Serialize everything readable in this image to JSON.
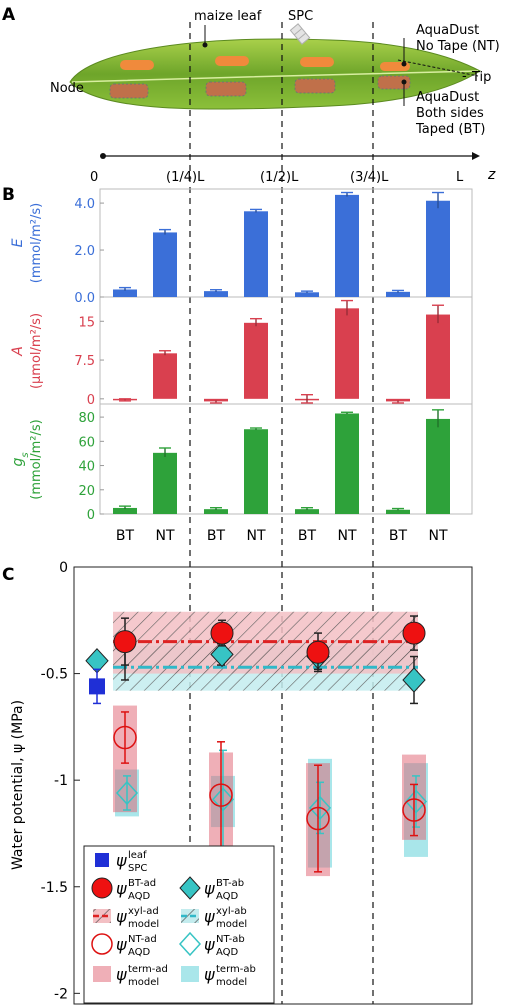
{
  "panels": {
    "A": "A",
    "B": "B",
    "C": "C"
  },
  "panel_a": {
    "leaf_label": "maize leaf",
    "spc_label": "SPC",
    "node_label": "Node",
    "tip_label": "Tip",
    "nt_label_1": "AquaDust",
    "nt_label_2": "No Tape (NT)",
    "bt_label_1": "AquaDust",
    "bt_label_2": "Both sides",
    "bt_label_3": "Taped (BT)",
    "axis_ticks": [
      "0",
      "(1/4)L",
      "(1/2)L",
      "(3/4)L",
      "L"
    ],
    "axis_var": "z",
    "colors": {
      "leaf": "#8fbf3a",
      "nt_patch": "#f08a3c",
      "bt_patch": "#c0704a"
    }
  },
  "chart_data": [
    {
      "type": "bar",
      "panel": "B",
      "groups": [
        "(0-1/4)L",
        "(1/4-1/2)L",
        "(1/2-3/4)L",
        "(3/4-1)L"
      ],
      "categories": [
        "BT",
        "NT"
      ],
      "rows": [
        {
          "ylabel_var": "E",
          "ylabel_unit": "(mmol/m²/s)",
          "color": "#3b6fd8",
          "ylim": [
            0,
            4.6
          ],
          "ticks": [
            "0.0",
            "2.0",
            "4.0"
          ],
          "tick_values": [
            0,
            2,
            4
          ],
          "values": [
            [
              0.32,
              2.75
            ],
            [
              0.25,
              3.65
            ],
            [
              0.2,
              4.35
            ],
            [
              0.22,
              4.1
            ]
          ],
          "errors": [
            [
              0.08,
              0.12
            ],
            [
              0.06,
              0.08
            ],
            [
              0.05,
              0.1
            ],
            [
              0.06,
              0.35
            ]
          ]
        },
        {
          "ylabel_var": "A",
          "ylabel_unit": "(μmol/m²/s)",
          "color": "#d9404f",
          "ylim": [
            -1,
            19.5
          ],
          "ticks": [
            "0",
            "7.5",
            "15"
          ],
          "tick_values": [
            0,
            7.5,
            15
          ],
          "values": [
            [
              -0.2,
              8.8
            ],
            [
              -0.5,
              14.7
            ],
            [
              0,
              17.5
            ],
            [
              -0.5,
              16.3
            ]
          ],
          "errors": [
            [
              0.2,
              0.5
            ],
            [
              0.3,
              0.8
            ],
            [
              0.8,
              1.5
            ],
            [
              0.3,
              1.8
            ]
          ]
        },
        {
          "ylabel_var": "gs",
          "ylabel_unit": "(mmol/m²/s)",
          "color": "#2ea23a",
          "ylim": [
            0,
            90
          ],
          "ticks": [
            "0",
            "20",
            "40",
            "60",
            "80"
          ],
          "tick_values": [
            0,
            20,
            40,
            60,
            80
          ],
          "values": [
            [
              5,
              50.5
            ],
            [
              4,
              70
            ],
            [
              4,
              83
            ],
            [
              3.5,
              78.5
            ]
          ],
          "errors": [
            [
              1.5,
              4
            ],
            [
              1.2,
              1
            ],
            [
              1.2,
              1
            ],
            [
              1.0,
              7.5
            ]
          ]
        }
      ],
      "x_labels": [
        "BT",
        "NT",
        "BT",
        "NT",
        "BT",
        "NT",
        "BT",
        "NT"
      ]
    },
    {
      "type": "scatter",
      "panel": "C",
      "ylabel": "Water potential, ψ (MPa)",
      "ylim": [
        -2.05,
        0
      ],
      "yticks": [
        "0",
        "-0.5",
        "-1",
        "-1.5",
        "-2"
      ],
      "ytick_values": [
        0,
        -0.5,
        -1,
        -1.5,
        -2
      ],
      "spc_leaf": {
        "value": -0.56,
        "err": 0.08,
        "color": "#1f2fd6"
      },
      "bt_ad": {
        "values": [
          -0.35,
          -0.31,
          -0.4,
          -0.31
        ],
        "errs": [
          0.11,
          0.06,
          0.09,
          0.08
        ],
        "color": "#ee1111"
      },
      "bt_ab": {
        "values": [
          -0.44,
          -0.41,
          -0.42,
          -0.53
        ],
        "errs": [
          0.09,
          0.05,
          0.06,
          0.11
        ],
        "color": "#37c4c4"
      },
      "nt_ad": {
        "values": [
          -0.8,
          -1.07,
          -1.18,
          -1.14
        ],
        "errs": [
          0.12,
          0.25,
          0.25,
          0.12
        ],
        "color": "#dd1111"
      },
      "nt_ab": {
        "values": [
          -1.06,
          -1.09,
          -1.13,
          -1.1
        ],
        "errs": [
          0.08,
          0.23,
          0.12,
          0.12
        ],
        "color": "#37c4c4"
      },
      "term_ad": {
        "hi": [
          -0.65,
          -0.87,
          -0.92,
          -0.88
        ],
        "lo": [
          -1.15,
          -1.41,
          -1.45,
          -1.28
        ],
        "color": "#e06070"
      },
      "term_ab": {
        "hi": [
          -0.95,
          -0.98,
          -0.9,
          -0.92
        ],
        "lo": [
          -1.17,
          -1.22,
          -1.41,
          -1.36
        ],
        "color": "#40c8d0"
      },
      "xyl_ad": {
        "mean": -0.35,
        "lo": -0.5,
        "hi": -0.21,
        "color": "#dd2222"
      },
      "xyl_ab": {
        "mean": -0.47,
        "lo": -0.58,
        "hi": -0.37,
        "color": "#30b8c8"
      },
      "legend": [
        {
          "sym": "ψ",
          "sup": "leaf",
          "sub": "SPC"
        },
        {
          "sym": "ψ",
          "sup": "BT-ad",
          "sub": "AQD"
        },
        {
          "sym": "ψ",
          "sup": "BT-ab",
          "sub": "AQD"
        },
        {
          "sym": "ψ",
          "sup": "xyl-ad",
          "sub": "model"
        },
        {
          "sym": "ψ",
          "sup": "xyl-ab",
          "sub": "model"
        },
        {
          "sym": "ψ",
          "sup": "NT-ad",
          "sub": "AQD"
        },
        {
          "sym": "ψ",
          "sup": "NT-ab",
          "sub": "AQD"
        },
        {
          "sym": "ψ",
          "sup": "term-ad",
          "sub": "model"
        },
        {
          "sym": "ψ",
          "sup": "term-ab",
          "sub": "model"
        }
      ]
    }
  ]
}
